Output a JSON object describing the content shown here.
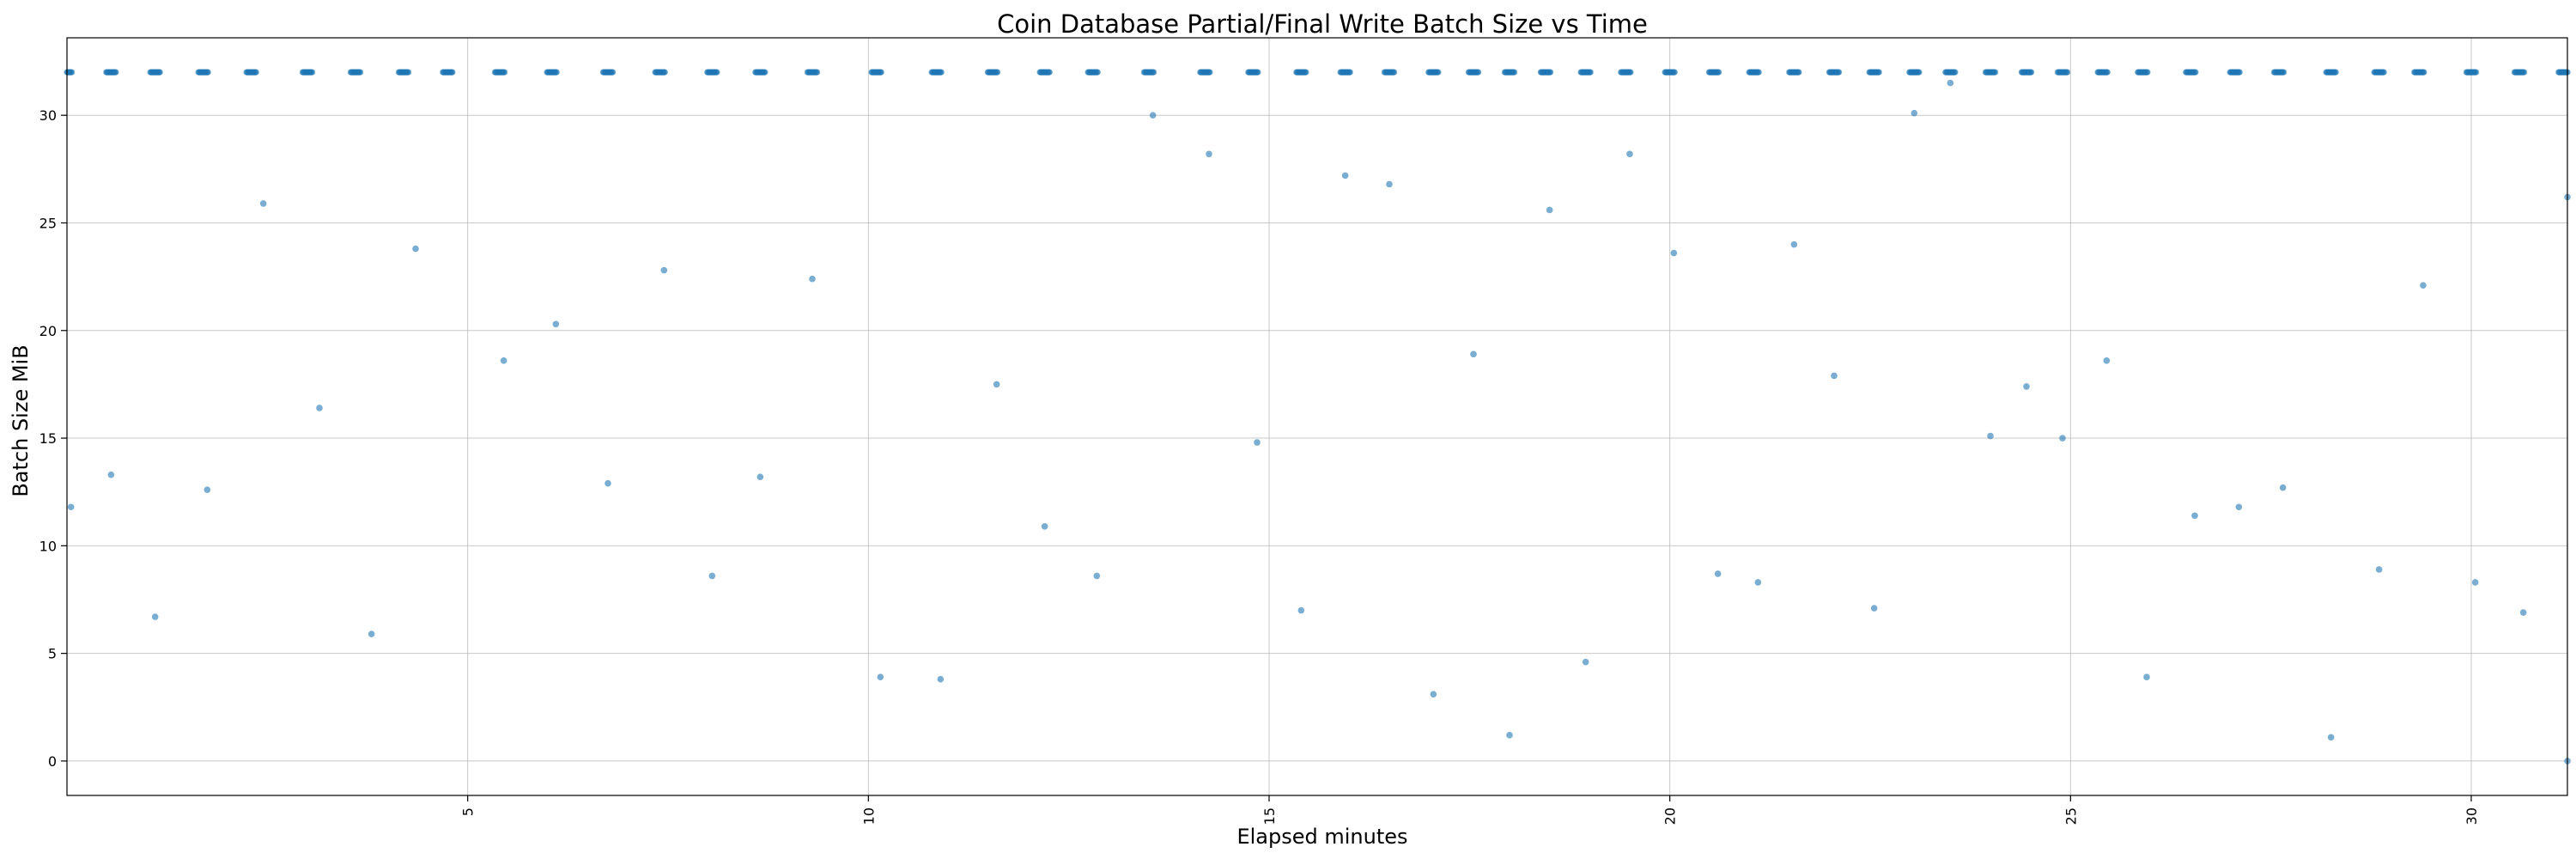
{
  "chart_data": {
    "type": "scatter",
    "title": "Coin Database Partial/Final Write Batch Size vs Time",
    "xlabel": "Elapsed minutes",
    "ylabel": "Batch Size MiB",
    "xlim": [
      0,
      31.2
    ],
    "ylim": [
      -1.6,
      33.6
    ],
    "xticks": [
      5,
      10,
      15,
      20,
      25,
      30
    ],
    "yticks": [
      0,
      5,
      10,
      15,
      20,
      25,
      30
    ],
    "grid": true,
    "point_color": "#1f77b4",
    "top_band": {
      "y": 32,
      "x": [
        0,
        0.55,
        1.1,
        1.7,
        2.3,
        3.0,
        3.6,
        4.2,
        4.75,
        5.4,
        6.05,
        6.75,
        7.4,
        8.05,
        8.65,
        9.3,
        10.1,
        10.85,
        11.55,
        12.2,
        12.8,
        13.5,
        14.2,
        14.8,
        15.4,
        15.95,
        16.5,
        17.05,
        17.55,
        18.0,
        18.45,
        18.95,
        19.45,
        20.0,
        20.55,
        21.05,
        21.55,
        22.05,
        22.55,
        23.05,
        23.5,
        24.0,
        24.45,
        24.9,
        25.4,
        25.9,
        26.5,
        27.05,
        27.6,
        28.25,
        28.85,
        29.35,
        30.0,
        30.6,
        31.15
      ]
    },
    "points": {
      "x": [
        0.05,
        0.55,
        1.1,
        1.75,
        2.45,
        3.15,
        3.8,
        4.35,
        5.45,
        6.1,
        6.75,
        7.45,
        8.05,
        8.65,
        9.3,
        10.15,
        10.9,
        11.6,
        12.2,
        12.85,
        13.55,
        14.25,
        14.85,
        15.4,
        15.95,
        16.5,
        17.05,
        17.55,
        18.0,
        18.5,
        18.95,
        19.5,
        20.05,
        20.6,
        21.1,
        21.55,
        22.05,
        22.55,
        23.05,
        23.5,
        24.0,
        24.45,
        24.9,
        25.45,
        25.95,
        26.55,
        27.1,
        27.65,
        28.25,
        28.85,
        29.4,
        30.05,
        30.65,
        31.2,
        31.2
      ],
      "y": [
        11.8,
        13.3,
        6.7,
        12.6,
        25.9,
        16.4,
        5.9,
        23.8,
        18.6,
        20.3,
        12.9,
        22.8,
        8.6,
        13.2,
        22.4,
        3.9,
        3.8,
        17.5,
        10.9,
        8.6,
        30.0,
        28.2,
        14.8,
        7.0,
        27.2,
        26.8,
        3.1,
        18.9,
        1.2,
        25.6,
        4.6,
        28.2,
        23.6,
        8.7,
        8.3,
        24.0,
        17.9,
        7.1,
        30.1,
        31.5,
        15.1,
        17.4,
        15.0,
        18.6,
        3.9,
        11.4,
        11.8,
        12.7,
        1.1,
        8.9,
        22.1,
        8.3,
        6.9,
        26.2,
        0.0
      ]
    }
  }
}
